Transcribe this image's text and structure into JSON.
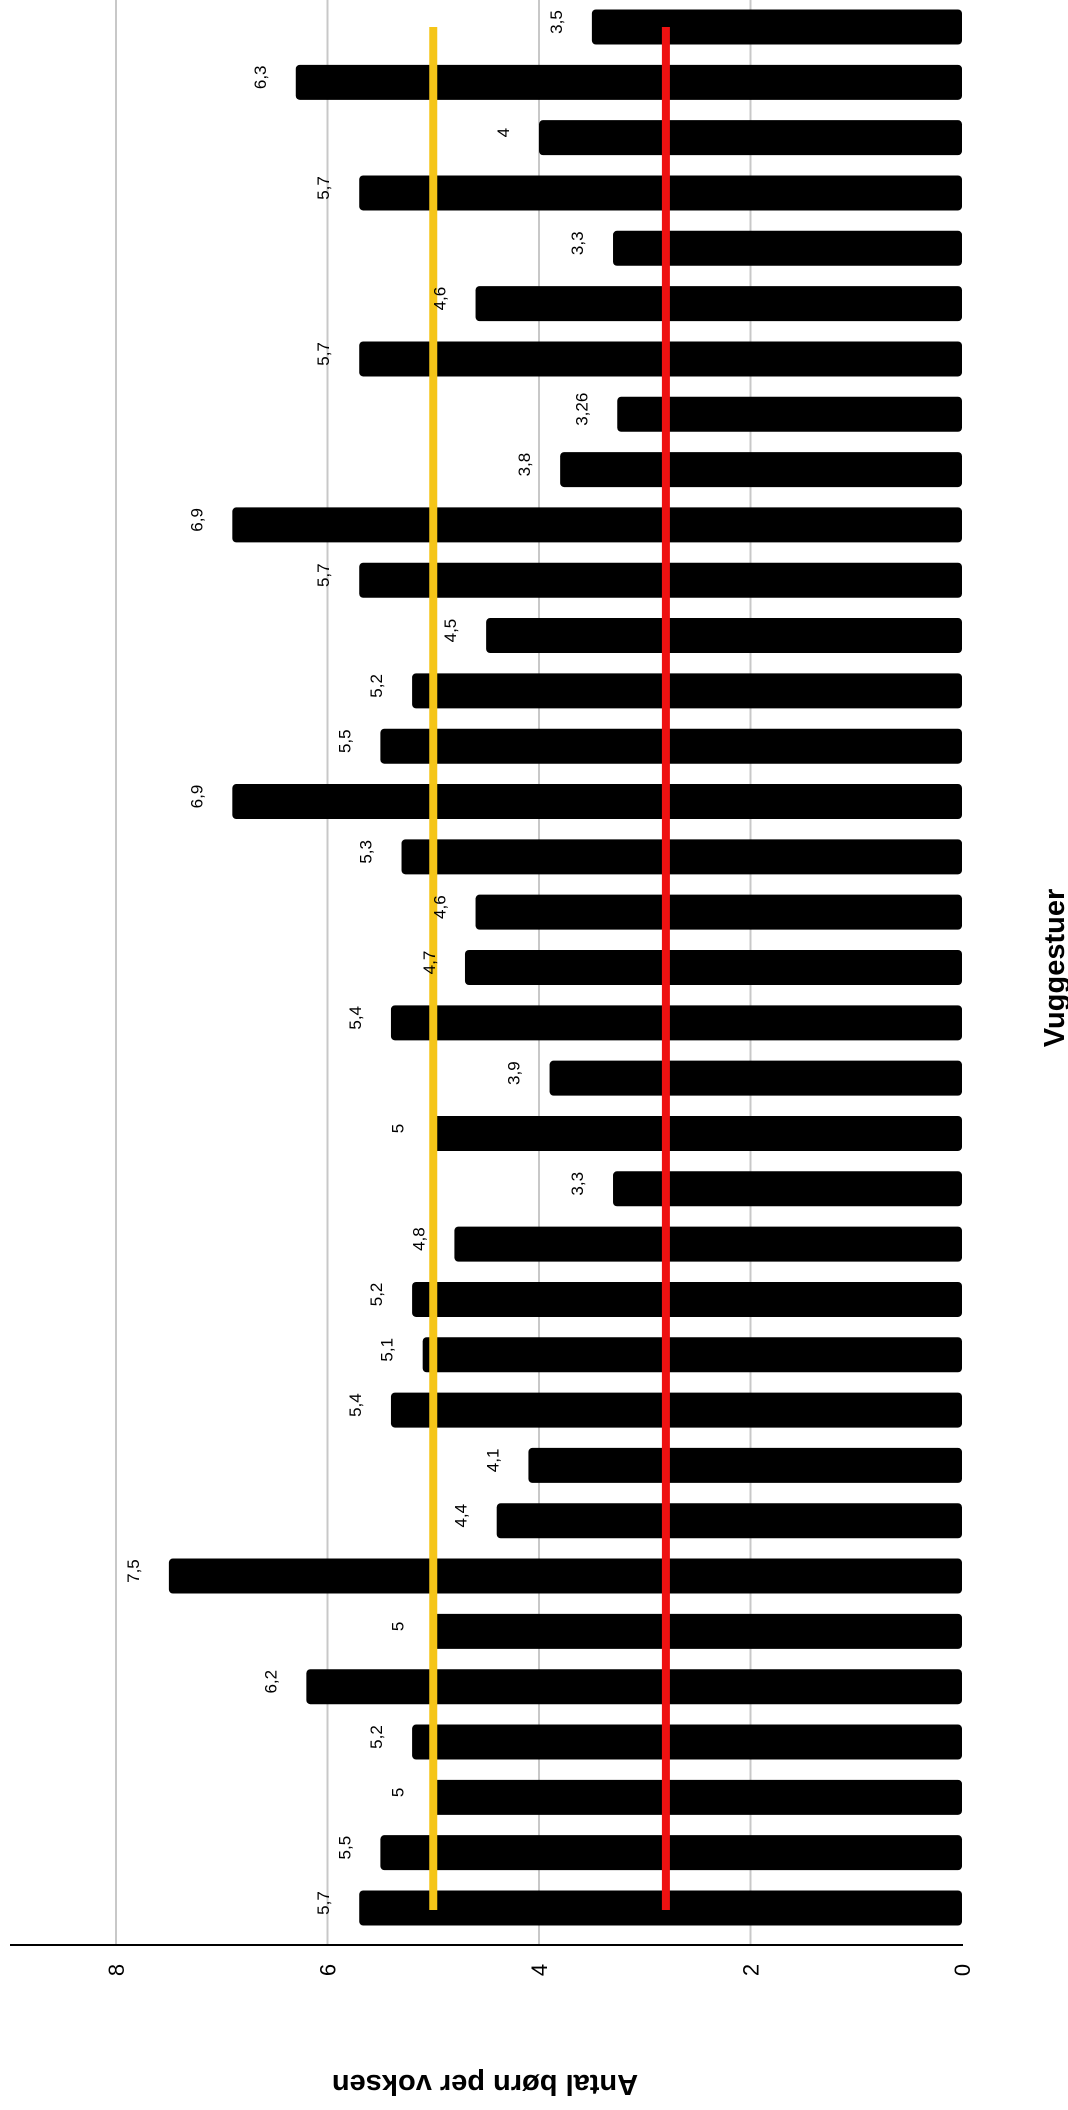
{
  "chart_data": {
    "type": "bar",
    "orientation": "horizontal",
    "rotated_view": "rotated-90-clockwise",
    "xlabel": "Vuggestuer",
    "ylabel": "Antal børn per voksen",
    "ylim": [
      0,
      8
    ],
    "y_ticks": [
      "0",
      "2",
      "4",
      "6",
      "8"
    ],
    "grid": true,
    "legend": "none",
    "values": [
      5.7,
      5.5,
      5,
      5.2,
      6.2,
      5,
      7.5,
      4.4,
      4.1,
      5.4,
      5.1,
      5.2,
      4.8,
      3.3,
      5,
      3.9,
      5.4,
      4.7,
      4.6,
      5.3,
      6.9,
      5.5,
      5.2,
      4.5,
      5.7,
      6.9,
      3.8,
      3.26,
      5.7,
      4.6,
      3.3,
      5.7,
      4,
      6.3,
      3.5
    ],
    "value_labels": [
      "5,7",
      "5,5",
      "5",
      "5,2",
      "6,2",
      "5",
      "7,5",
      "4,4",
      "4,1",
      "5,4",
      "5,1",
      "5,2",
      "4,8",
      "3,3",
      "5",
      "3,9",
      "5,4",
      "4,7",
      "4,6",
      "5,3",
      "6,9",
      "5,5",
      "5,2",
      "4,5",
      "5,7",
      "6,9",
      "3,8",
      "3,26",
      "5,7",
      "4,6",
      "3,3",
      "5,7",
      "4",
      "6,3",
      "3,5"
    ],
    "reference_lines": [
      {
        "value": 5.0,
        "color": "#f5c518"
      },
      {
        "value": 2.8,
        "color": "#ee1111"
      }
    ],
    "colors": {
      "bars": "#000000",
      "grid": "#c8c8c8",
      "axis": "#000000"
    }
  }
}
